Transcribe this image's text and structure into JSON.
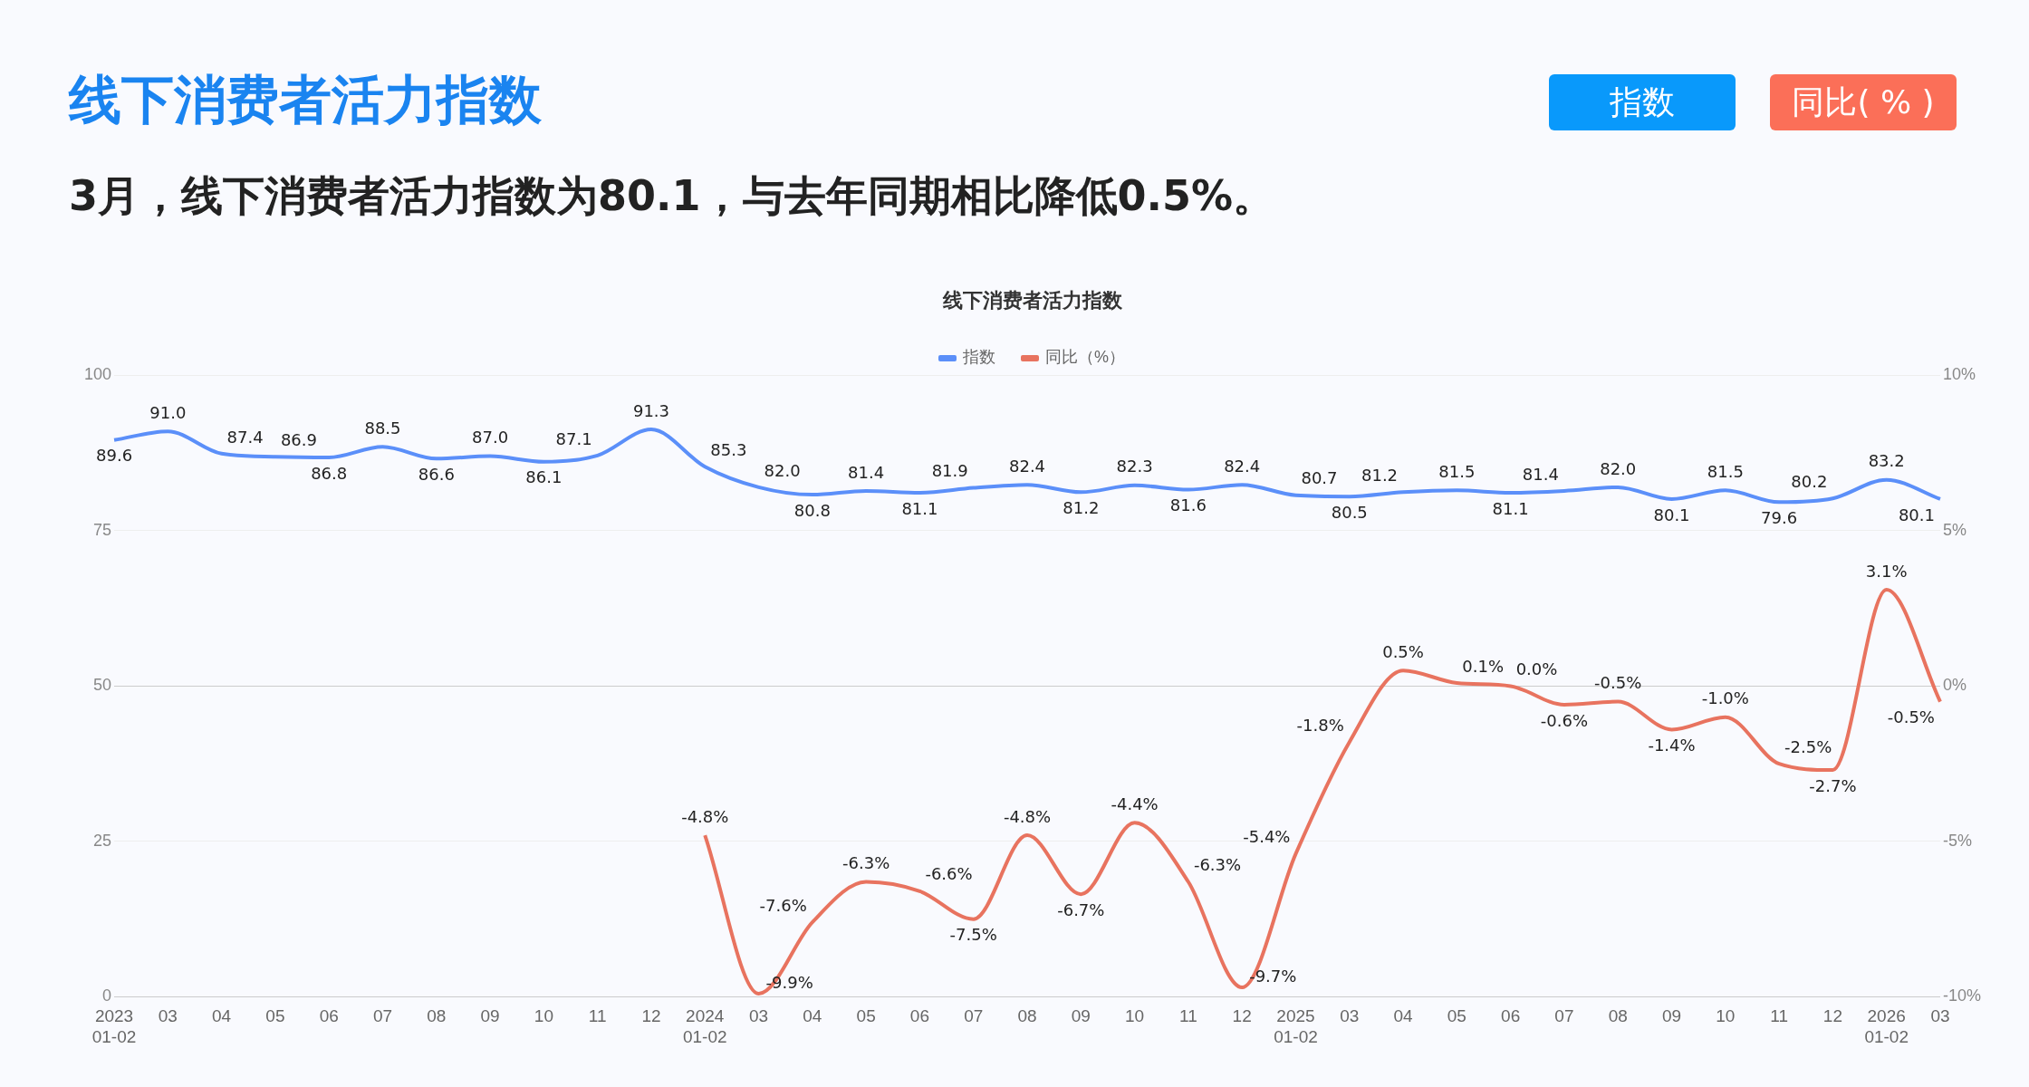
{
  "chart_data": {
    "type": "line",
    "title": "线下消费者活力指数",
    "subtitle": "3月，线下消费者活力指数为80.1，与去年同期相比降低0.5%。",
    "annotations": [
      "线下消费者活力指数",
      "指数",
      "同比( % )"
    ],
    "categories": [
      "2023\n01-02",
      "03",
      "04",
      "05",
      "06",
      "07",
      "08",
      "09",
      "10",
      "11",
      "12",
      "2024\n01-02",
      "03",
      "04",
      "05",
      "06",
      "07",
      "08",
      "09",
      "10",
      "11",
      "12",
      "2025\n01-02",
      "03",
      "04",
      "05",
      "06",
      "07",
      "08",
      "09",
      "10",
      "11",
      "12",
      "2026\n01-02",
      "03"
    ],
    "series": [
      {
        "name": "指数",
        "color": "#5b8ff9",
        "values": [
          89.6,
          91.0,
          87.4,
          86.9,
          86.8,
          88.5,
          86.6,
          87.0,
          86.1,
          87.1,
          91.3,
          85.3,
          82.0,
          80.8,
          81.4,
          81.1,
          81.9,
          82.4,
          81.2,
          82.3,
          81.6,
          82.4,
          80.7,
          80.5,
          81.2,
          81.5,
          81.1,
          81.4,
          82.0,
          80.1,
          81.5,
          79.6,
          80.2,
          83.2,
          80.1
        ],
        "value_labels": [
          "89.6",
          "91.0",
          "87.4",
          "86.9",
          "86.8",
          "88.5",
          "86.6",
          "87.0",
          "86.1",
          "87.1",
          "91.3",
          "85.3",
          "82.0",
          "80.8",
          "81.4",
          "81.1",
          "81.9",
          "82.4",
          "81.2",
          "82.3",
          "81.6",
          "82.4",
          "80.7",
          "80.5",
          "81.2",
          "81.5",
          "81.1",
          "81.4",
          "82.0",
          "80.1",
          "81.5",
          "79.6",
          "80.2",
          "83.2",
          "80.1"
        ]
      },
      {
        "name": "同比（%）",
        "color": "#e8735f",
        "axis": "y2",
        "values": [
          null,
          null,
          null,
          null,
          null,
          null,
          null,
          null,
          null,
          null,
          null,
          -4.8,
          -9.9,
          -7.6,
          -6.3,
          -6.6,
          -7.5,
          -4.8,
          -6.7,
          -4.4,
          -6.3,
          -9.7,
          -5.4,
          -1.8,
          0.5,
          0.1,
          0.0,
          -0.6,
          -0.5,
          -1.4,
          -1.0,
          -2.5,
          -2.7,
          3.1,
          -0.5
        ],
        "value_labels": [
          null,
          null,
          null,
          null,
          null,
          null,
          null,
          null,
          null,
          null,
          null,
          "-4.8%",
          "-9.9%",
          "-7.6%",
          "-6.3%",
          "-6.6%",
          "-7.5%",
          "-4.8%",
          "-6.7%",
          "-4.4%",
          "-6.3%",
          "-9.7%",
          "-5.4%",
          "-1.8%",
          "0.5%",
          "0.1%",
          "0.0%",
          "-0.6%",
          "-0.5%",
          "-1.4%",
          "-1.0%",
          "-2.5%",
          "-2.7%",
          "3.1%",
          "-0.5%"
        ]
      }
    ],
    "ylim": [
      0,
      100
    ],
    "yticks": [
      0,
      25,
      50,
      75,
      100
    ],
    "y2lim": [
      -10,
      10
    ],
    "y2ticks": [
      {
        "value": -10,
        "label": "-10%"
      },
      {
        "value": -5,
        "label": "-5%"
      },
      {
        "value": 0,
        "label": "0%"
      },
      {
        "value": 5,
        "label": "5%"
      },
      {
        "value": 10,
        "label": "10%"
      }
    ],
    "grid": "y",
    "legend": "top",
    "marker": "none",
    "line_style": "solid"
  }
}
